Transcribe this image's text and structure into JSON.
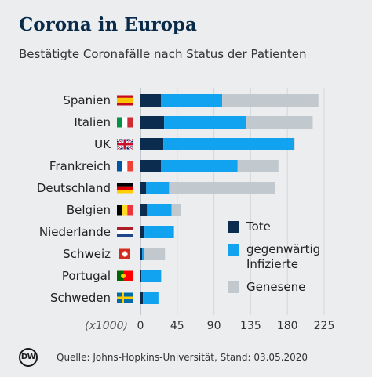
{
  "header": {
    "title": "Corona in Europa",
    "subtitle": "Bestätigte Coronafälle nach Status der Patienten"
  },
  "chart_data": {
    "type": "bar",
    "orientation": "horizontal",
    "stacked": true,
    "categories": [
      "Spanien",
      "Italien",
      "UK",
      "Frankreich",
      "Deutschland",
      "Belgien",
      "Niederlande",
      "Schweiz",
      "Portugal",
      "Schweden"
    ],
    "series": [
      {
        "name": "Tote",
        "color": "#0c2c4f",
        "values": [
          25,
          29,
          28,
          25,
          7,
          8,
          5,
          2,
          1,
          3
        ]
      },
      {
        "name": "gegenwärtig Infizierte",
        "color": "#12a3f0",
        "values": [
          75,
          100,
          160,
          94,
          28,
          30,
          36,
          3,
          24,
          19
        ]
      },
      {
        "name": "Genesene",
        "color": "#c1c8ce",
        "values": [
          118,
          82,
          1,
          50,
          130,
          12,
          0,
          25,
          1,
          0
        ]
      }
    ],
    "unit_label": "(x1000)",
    "xlim": [
      0,
      225
    ],
    "xticks": [
      "0",
      "45",
      "90",
      "135",
      "180",
      "225"
    ],
    "grid": true,
    "legend_position": "lower-right"
  },
  "flags": [
    "es",
    "it",
    "uk",
    "fr",
    "de",
    "be",
    "nl",
    "ch",
    "pt",
    "se"
  ],
  "footer": {
    "logo_text": "DW",
    "source": "Quelle: Johns-Hopkins-Universität, Stand: 03.05.2020"
  }
}
